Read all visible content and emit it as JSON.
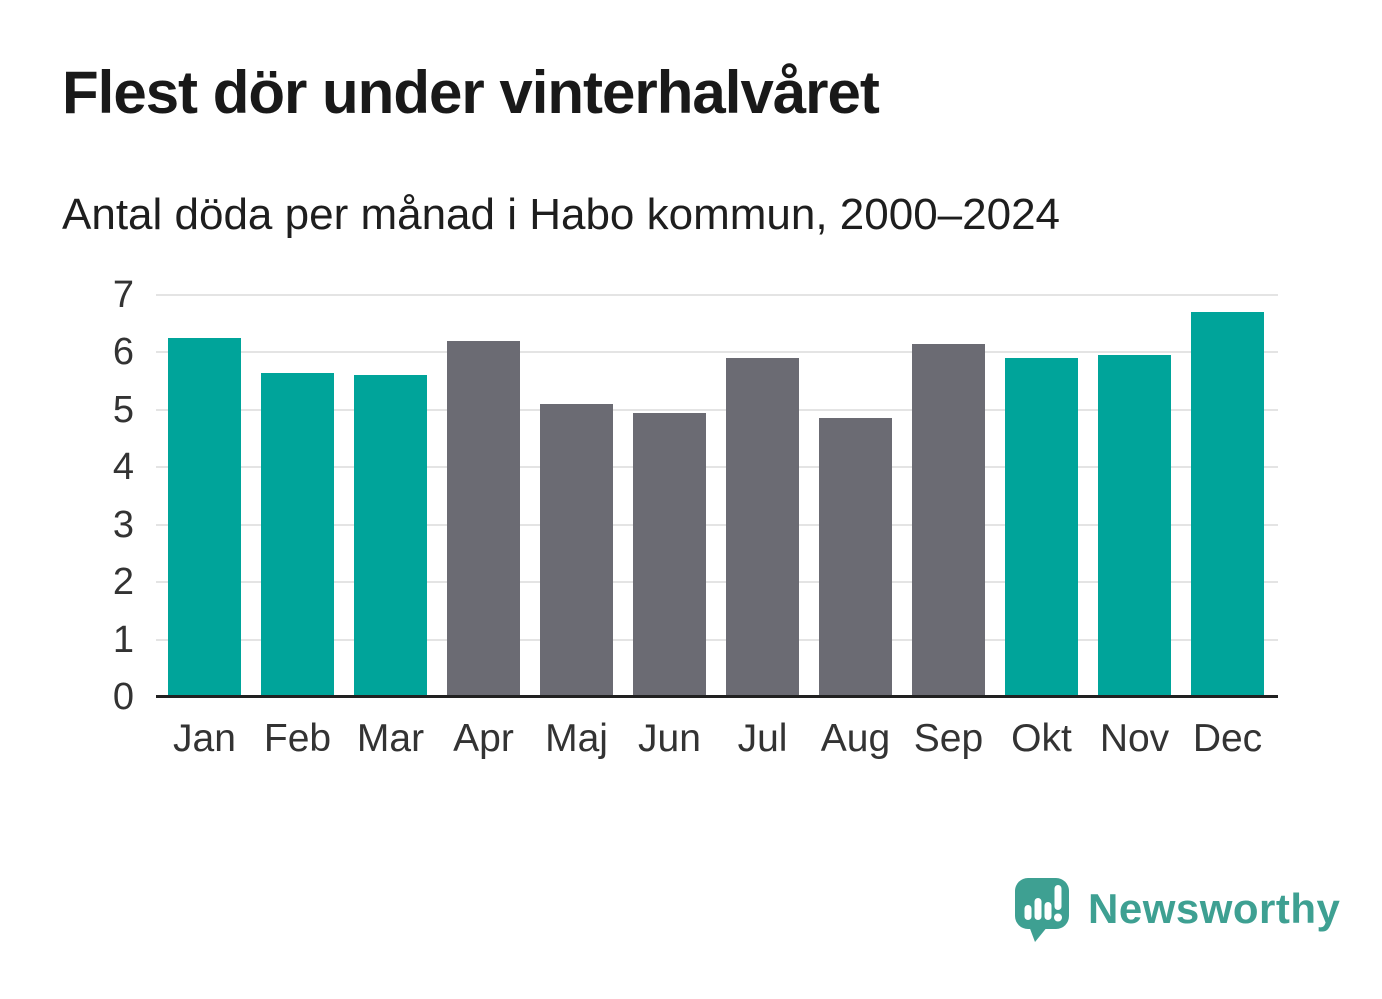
{
  "header": {
    "title": "Flest dör under vinterhalvåret",
    "subtitle": "Antal döda per månad i Habo kommun, 2000–2024"
  },
  "chart_data": {
    "type": "bar",
    "title": "Flest dör under vinterhalvåret",
    "subtitle": "Antal döda per månad i Habo kommun, 2000–2024",
    "categories": [
      "Jan",
      "Feb",
      "Mar",
      "Apr",
      "Maj",
      "Jun",
      "Jul",
      "Aug",
      "Sep",
      "Okt",
      "Nov",
      "Dec"
    ],
    "values": [
      6.25,
      5.65,
      5.6,
      6.2,
      5.1,
      4.95,
      5.9,
      4.85,
      6.15,
      5.9,
      5.95,
      6.7
    ],
    "bar_colors": [
      "teal",
      "teal",
      "teal",
      "gray",
      "gray",
      "gray",
      "gray",
      "gray",
      "gray",
      "teal",
      "teal",
      "teal"
    ],
    "colors": {
      "teal": "#00a49a",
      "gray": "#6b6b73"
    },
    "xlabel": "",
    "ylabel": "",
    "ylim": [
      0,
      7
    ],
    "yticks": [
      0,
      1,
      2,
      3,
      4,
      5,
      6,
      7
    ],
    "grid": true,
    "legend": "none",
    "highlight_meaning": "teal = winter half-year months (Okt–Mar), gray = summer half-year months (Apr–Sep)"
  },
  "footer": {
    "brand": "Newsworthy",
    "logo_icon": "newsworthy-speech-bubble-bar-chart-icon",
    "brand_color": "#3ea092"
  }
}
